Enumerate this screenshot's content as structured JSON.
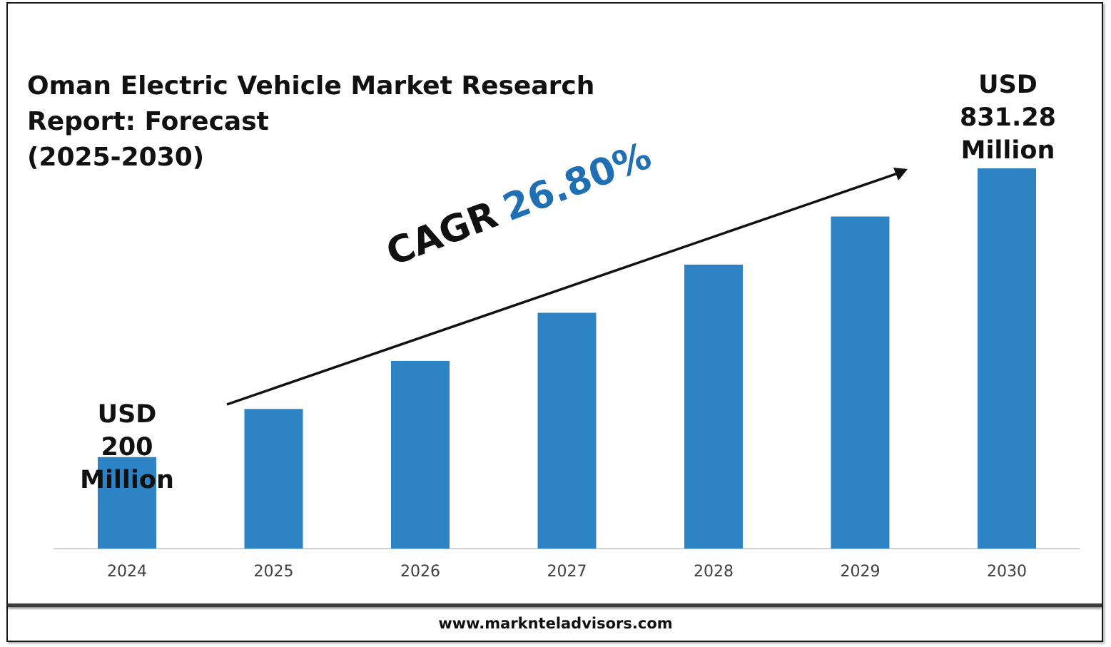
{
  "title_lines": [
    "Oman Electric Vehicle Market Research",
    "Report: Forecast",
    "(2025-2030)"
  ],
  "start_callout": [
    "USD",
    "200",
    "Million"
  ],
  "end_callout": [
    "USD",
    "831.28",
    "Million"
  ],
  "cagr": {
    "label": "CAGR",
    "value": "26.80%"
  },
  "footer": {
    "url": "www.marknteladvisors.com"
  },
  "colors": {
    "bar": "#2e83c4",
    "cagr_value": "#1f6fb5",
    "axis": "#d0d0d0",
    "tick_text": "#404040"
  },
  "chart_data": {
    "type": "bar",
    "categories": [
      "2024",
      "2025",
      "2026",
      "2027",
      "2028",
      "2029",
      "2030"
    ],
    "values": [
      200,
      305.2,
      410.3,
      515.5,
      620.8,
      726.0,
      831.28
    ],
    "units": "USD Million",
    "data_labels_shown_for": [
      "2024",
      "2030"
    ],
    "trend_arrow": "rising, from 2025 toward 2030",
    "gridlines": false,
    "y_axis_visible": false
  }
}
